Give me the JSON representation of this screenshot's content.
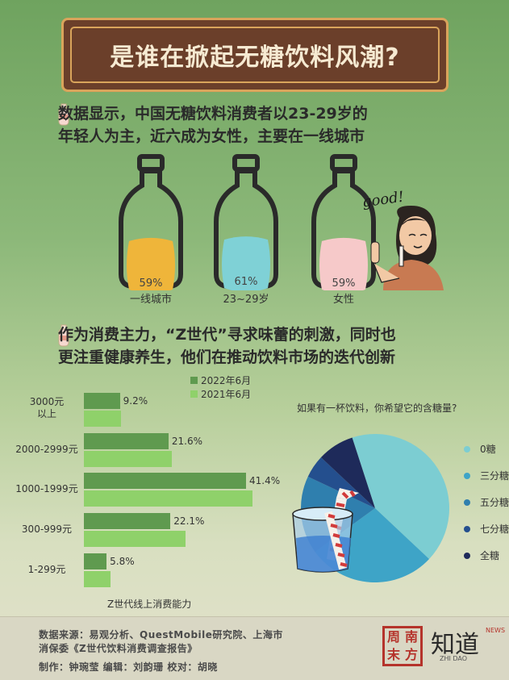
{
  "title": "是谁在掀起无糖饮料风潮?",
  "section1": {
    "headline_line1": "数据显示，中国无糖饮料消费者以23-29岁的",
    "headline_line2": "年轻人为主，近六成为女性，主要在一线城市",
    "bottles": [
      {
        "label": "一线城市",
        "percent": "59%",
        "value": 59,
        "color": "#efb53a"
      },
      {
        "label": "23~29岁",
        "percent": "61%",
        "value": 61,
        "color": "#7fd1d6"
      },
      {
        "label": "女性",
        "percent": "59%",
        "value": 59,
        "color": "#f6c9c9"
      }
    ],
    "speech": "good!"
  },
  "section2": {
    "headline_line1": "作为消费主力，“Z世代”寻求味蕾的刺激，同时也",
    "headline_line2": "更注重健康养生，他们在推动饮料市场的迭代创新"
  },
  "chart_data": [
    {
      "type": "bar",
      "orientation": "horizontal",
      "xlabel": "Z世代线上消费能力",
      "categories": [
        [
          "3000元",
          "以上"
        ],
        [
          "2000-2999元"
        ],
        [
          "1000-1999元"
        ],
        [
          "300-999元"
        ],
        [
          "1-299元"
        ]
      ],
      "series": [
        {
          "name": "2022年6月",
          "color": "#5f9a4f",
          "values": [
            9.2,
            21.6,
            41.4,
            22.1,
            5.8
          ],
          "labels": [
            "9.2%",
            "21.6%",
            "41.4%",
            "22.1%",
            "5.8%"
          ]
        },
        {
          "name": "2021年6月",
          "color": "#8fd16a",
          "values": [
            9.5,
            22.5,
            43.0,
            26.0,
            6.8
          ]
        }
      ]
    },
    {
      "type": "pie",
      "title": "如果有一杯饮料，你希望它的含糖量?",
      "legend_position": "right",
      "slices": [
        {
          "name": "0糖",
          "value": 42,
          "color": "#7ccdd2"
        },
        {
          "name": "三分糖",
          "value": 28,
          "color": "#3ea4c7"
        },
        {
          "name": "五分糖",
          "value": 17,
          "color": "#2f7fae"
        },
        {
          "name": "七分糖",
          "value": 5,
          "color": "#244f8e"
        },
        {
          "name": "全糖",
          "value": 8,
          "color": "#1e2a5a"
        }
      ]
    }
  ],
  "footer": {
    "source_line1": "数据来源：易观分析、QuestMobile研究院、上海市",
    "source_line2": "消保委《Z世代饮料消费调查报告》",
    "credits": "制作：钟琬莹   编辑：刘韵珊   校对：胡晓",
    "seal_chars": [
      "南",
      "周",
      "方",
      "末"
    ],
    "brand": "知道",
    "brand_sub": "ZHI DAO",
    "brand_tag": "NEWS"
  }
}
